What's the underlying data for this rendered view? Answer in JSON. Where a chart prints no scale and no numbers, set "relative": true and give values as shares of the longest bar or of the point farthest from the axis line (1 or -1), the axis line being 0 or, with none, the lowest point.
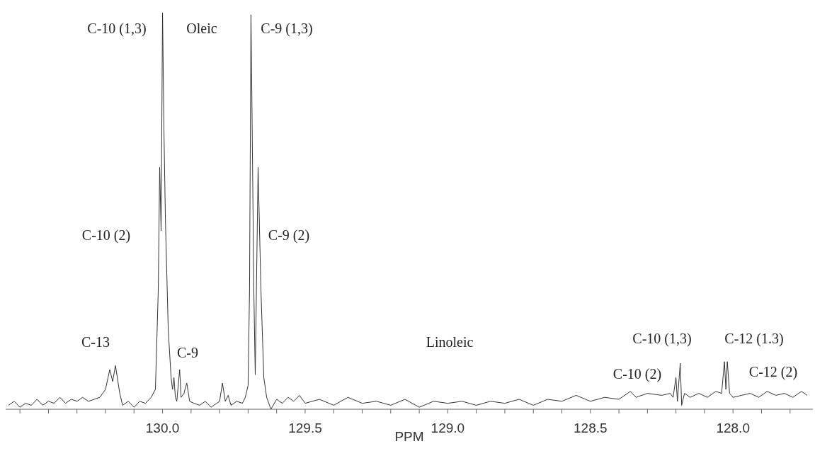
{
  "chart_data": {
    "type": "line",
    "xlabel": "PPM",
    "relative": true,
    "xlim": [
      130.55,
      127.72
    ],
    "xticks": [
      {
        "value": 130.5,
        "label": null
      },
      {
        "value": 130.4,
        "label": null
      },
      {
        "value": 130.3,
        "label": null
      },
      {
        "value": 130.2,
        "label": null
      },
      {
        "value": 130.1,
        "label": null
      },
      {
        "value": 130.0,
        "label": "130.0"
      },
      {
        "value": 129.9,
        "label": null
      },
      {
        "value": 129.8,
        "label": null
      },
      {
        "value": 129.7,
        "label": null
      },
      {
        "value": 129.6,
        "label": null
      },
      {
        "value": 129.5,
        "label": "129.5"
      },
      {
        "value": 129.4,
        "label": null
      },
      {
        "value": 129.3,
        "label": null
      },
      {
        "value": 129.2,
        "label": null
      },
      {
        "value": 129.1,
        "label": null
      },
      {
        "value": 129.0,
        "label": "129.0"
      },
      {
        "value": 128.9,
        "label": null
      },
      {
        "value": 128.8,
        "label": null
      },
      {
        "value": 128.7,
        "label": null
      },
      {
        "value": 128.6,
        "label": null
      },
      {
        "value": 128.5,
        "label": "128.5"
      },
      {
        "value": 128.4,
        "label": null
      },
      {
        "value": 128.3,
        "label": null
      },
      {
        "value": 128.2,
        "label": null
      },
      {
        "value": 128.1,
        "label": null
      },
      {
        "value": 128.0,
        "label": "128.0"
      },
      {
        "value": 127.9,
        "label": null
      },
      {
        "value": 127.8,
        "label": null
      }
    ],
    "tick_labels": "x",
    "series": [
      {
        "color": "#333333",
        "x": [
          130.54,
          130.52,
          130.5,
          130.48,
          130.46,
          130.44,
          130.42,
          130.4,
          130.38,
          130.36,
          130.34,
          130.32,
          130.3,
          130.28,
          130.26,
          130.24,
          130.22,
          130.2,
          130.185,
          130.175,
          130.165,
          130.15,
          130.14,
          130.12,
          130.1,
          130.08,
          130.06,
          130.04,
          130.025,
          130.015,
          130.01,
          130.005,
          130.0,
          129.995,
          129.99,
          129.98,
          129.97,
          129.965,
          129.96,
          129.955,
          129.95,
          129.94,
          129.935,
          129.925,
          129.915,
          129.905,
          129.89,
          129.87,
          129.85,
          129.83,
          129.81,
          129.8,
          129.79,
          129.78,
          129.77,
          129.76,
          129.74,
          129.72,
          129.71,
          129.7,
          129.695,
          129.69,
          129.687,
          129.68,
          129.675,
          129.665,
          129.655,
          129.645,
          129.635,
          129.62,
          129.6,
          129.58,
          129.56,
          129.54,
          129.52,
          129.5,
          129.45,
          129.4,
          129.35,
          129.3,
          129.25,
          129.2,
          129.15,
          129.1,
          129.05,
          129.0,
          128.95,
          128.9,
          128.85,
          128.8,
          128.75,
          128.7,
          128.65,
          128.6,
          128.55,
          128.5,
          128.45,
          128.4,
          128.36,
          128.34,
          128.3,
          128.25,
          128.22,
          128.21,
          128.2,
          128.195,
          128.185,
          128.18,
          128.17,
          128.15,
          128.12,
          128.09,
          128.06,
          128.04,
          128.03,
          128.025,
          128.02,
          128.012,
          128.0,
          127.97,
          127.94,
          127.91,
          127.88,
          127.85,
          127.82,
          127.79,
          127.76,
          127.74
        ],
        "values": [
          0.01,
          0.02,
          0.005,
          0.015,
          0.01,
          0.025,
          0.01,
          0.02,
          0.015,
          0.03,
          0.015,
          0.025,
          0.02,
          0.03,
          0.02,
          0.025,
          0.03,
          0.05,
          0.1,
          0.07,
          0.11,
          0.04,
          0.01,
          0.02,
          0.005,
          0.02,
          0.015,
          0.03,
          0.05,
          0.3,
          0.61,
          0.45,
          1.0,
          0.7,
          0.48,
          0.2,
          0.08,
          0.05,
          0.08,
          0.03,
          0.02,
          0.1,
          0.03,
          0.04,
          0.066,
          0.02,
          0.015,
          0.01,
          0.02,
          0.005,
          0.015,
          0.02,
          0.066,
          0.02,
          0.035,
          0.01,
          0.02,
          0.015,
          0.03,
          0.06,
          0.3,
          0.995,
          0.8,
          0.3,
          0.087,
          0.61,
          0.3,
          0.08,
          0.03,
          0,
          0.025,
          0.015,
          0.03,
          0.02,
          0.035,
          0.015,
          0.025,
          0.01,
          0.03,
          0.015,
          0.02,
          0.01,
          0.025,
          0.005,
          0.02,
          0.015,
          0.02,
          0.01,
          0.02,
          0.015,
          0.025,
          0.01,
          0.025,
          0.02,
          0.035,
          0.02,
          0.03,
          0.025,
          0.045,
          0.03,
          0.04,
          0.035,
          0.04,
          0.03,
          0.08,
          0.02,
          0.116,
          0.01,
          0.04,
          0.03,
          0.04,
          0.03,
          0.045,
          0.04,
          0.12,
          0.05,
          0.12,
          0.04,
          0.03,
          0.035,
          0.04,
          0.03,
          0.045,
          0.035,
          0.04,
          0.03,
          0.045,
          0.035
        ]
      }
    ],
    "annotations": [
      "C-10 (1,3)",
      "Oleic",
      "C-9 (1,3)",
      "C-10 (2)",
      "C-9 (2)",
      "C-13",
      "C-9",
      "Linoleic",
      "C-10 (1,3)",
      "C-12 (1.3)",
      "C-10 (2)",
      "C-12 (2)"
    ]
  }
}
